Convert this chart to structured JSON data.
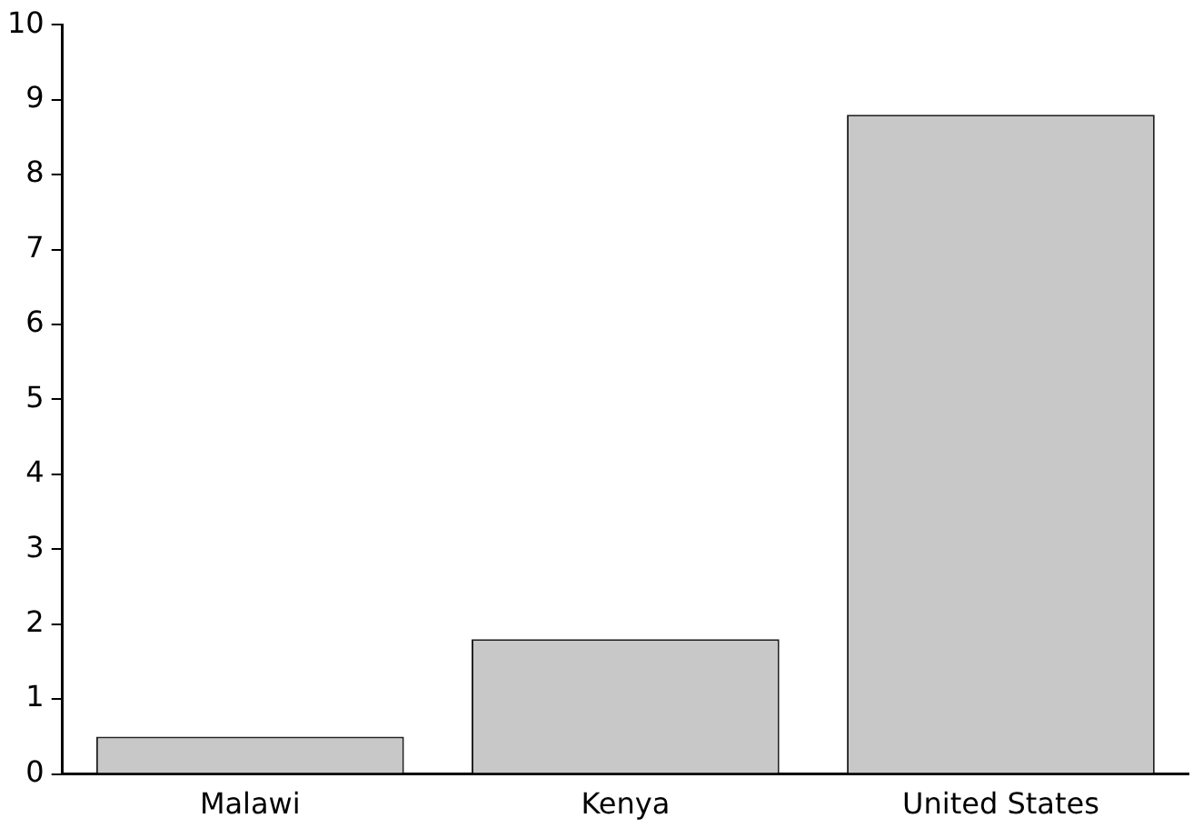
{
  "chart_data": {
    "type": "bar",
    "categories": [
      "Malawi",
      "Kenya",
      "United States"
    ],
    "values": [
      0.5,
      1.8,
      8.8
    ],
    "color": "#c8c8c8",
    "ylim": [
      0,
      10
    ],
    "yticks": [
      0,
      1,
      2,
      3,
      4,
      5,
      6,
      7,
      8,
      9,
      10
    ],
    "grid": false,
    "legend": false
  }
}
